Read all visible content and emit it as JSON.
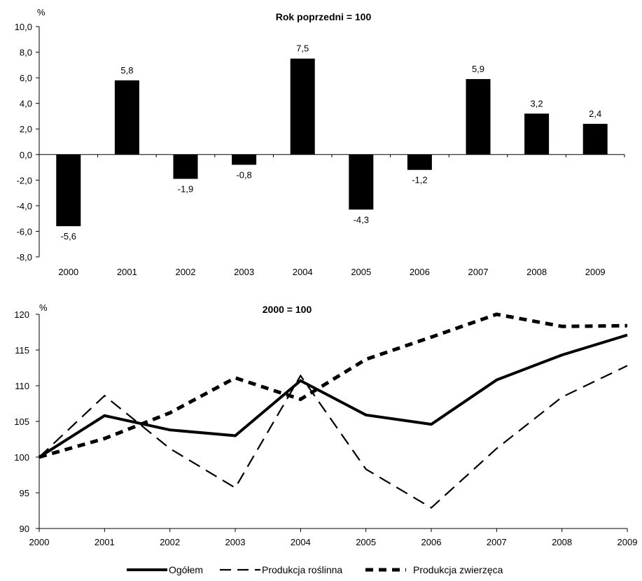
{
  "chart_data": [
    {
      "type": "bar",
      "title": "Rok poprzedni = 100",
      "unit": "%",
      "categories": [
        "2000",
        "2001",
        "2002",
        "2003",
        "2004",
        "2005",
        "2006",
        "2007",
        "2008",
        "2009"
      ],
      "values": [
        -5.6,
        5.8,
        -1.9,
        -0.8,
        7.5,
        -4.3,
        -1.2,
        5.9,
        3.2,
        2.4
      ],
      "value_labels": [
        "-5,6",
        "5,8",
        "-1,9",
        "-0,8",
        "7,5",
        "-4,3",
        "-1,2",
        "5,9",
        "3,2",
        "2,4"
      ],
      "ylim": [
        -8.0,
        10.0
      ],
      "yticks": [
        10.0,
        8.0,
        6.0,
        4.0,
        2.0,
        0.0,
        -2.0,
        -4.0,
        -6.0,
        -8.0
      ],
      "ytick_labels": [
        "10,0",
        "8,0",
        "6,0",
        "4,0",
        "2,0",
        "0,0",
        "-2,0",
        "-4,0",
        "-6,0",
        "-8,0"
      ],
      "bar_color": "#000000",
      "grid": false
    },
    {
      "type": "line",
      "title": "2000 = 100",
      "unit": "%",
      "x": [
        "2000",
        "2001",
        "2002",
        "2003",
        "2004",
        "2005",
        "2006",
        "2007",
        "2008",
        "2009"
      ],
      "ylim": [
        90,
        120
      ],
      "yticks": [
        120,
        115,
        110,
        105,
        100,
        95,
        90
      ],
      "ytick_labels": [
        "120",
        "115",
        "110",
        "105",
        "100",
        "95",
        "90"
      ],
      "grid": false,
      "legend_position": "bottom",
      "series": [
        {
          "name": "Ogółem",
          "style": "solid",
          "values": [
            100,
            105.8,
            103.8,
            103.0,
            110.7,
            105.9,
            104.6,
            110.8,
            114.3,
            117.1
          ]
        },
        {
          "name": "Produkcja roślinna",
          "style": "long-dash",
          "values": [
            100,
            108.6,
            101.2,
            95.7,
            111.4,
            98.3,
            92.9,
            101.2,
            108.4,
            112.8
          ]
        },
        {
          "name": "Produkcja zwierzęca",
          "style": "short-dash",
          "values": [
            100,
            102.6,
            106.2,
            111.1,
            108.1,
            113.7,
            116.8,
            120.0,
            118.3,
            118.4
          ]
        }
      ],
      "color": "#000000"
    }
  ]
}
